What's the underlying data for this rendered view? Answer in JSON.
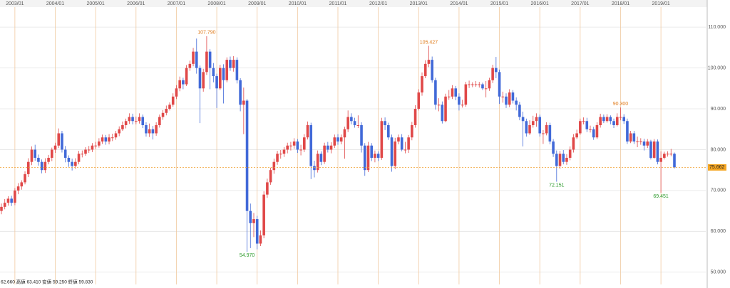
{
  "chart_data": {
    "type": "candlestick",
    "categories": [
      null,
      null,
      null,
      null,
      "2003/01",
      null,
      null,
      null,
      null,
      null,
      null,
      null,
      null,
      null,
      null,
      null,
      "2004/01",
      null,
      null,
      null,
      null,
      null,
      null,
      null,
      null,
      null,
      null,
      null,
      "2005/01",
      null,
      null,
      null,
      null,
      null,
      null,
      null,
      null,
      null,
      null,
      null,
      "2006/01",
      null,
      null,
      null,
      null,
      null,
      null,
      null,
      null,
      null,
      null,
      null,
      "2007/01",
      null,
      null,
      null,
      null,
      null,
      null,
      null,
      null,
      null,
      null,
      null,
      "2008/01",
      null,
      null,
      null,
      null,
      null,
      null,
      null,
      null,
      null,
      null,
      null,
      "2009/01",
      null,
      null,
      null,
      null,
      null,
      null,
      null,
      null,
      null,
      null,
      null,
      "2010/01",
      null,
      null,
      null,
      null,
      null,
      null,
      null,
      null,
      null,
      null,
      null,
      "2011/01",
      null,
      null,
      null,
      null,
      null,
      null,
      null,
      null,
      null,
      null,
      null,
      "2012/01",
      null,
      null,
      null,
      null,
      null,
      null,
      null,
      null,
      null,
      null,
      null,
      "2013/01",
      null,
      null,
      null,
      null,
      null,
      null,
      null,
      null,
      null,
      null,
      null,
      "2014/01",
      null,
      null,
      null,
      null,
      null,
      null,
      null,
      null,
      null,
      null,
      null,
      "2015/01",
      null,
      null,
      null,
      null,
      null,
      null,
      null,
      null,
      null,
      null,
      null,
      "2016/01",
      null,
      null,
      null,
      null,
      null,
      null,
      null,
      null,
      null,
      null,
      null,
      "2017/01",
      null,
      null,
      null,
      null,
      null,
      null,
      null,
      null,
      null,
      null,
      null,
      "2018/01",
      null,
      null,
      null,
      null,
      null,
      null,
      null,
      null,
      null,
      null,
      null,
      "2019/01",
      null,
      null,
      null,
      null
    ],
    "open": [
      65,
      66,
      67,
      68,
      67,
      70,
      71,
      72,
      74,
      77,
      80,
      78,
      77,
      75,
      77,
      78,
      80,
      81,
      84,
      80,
      78,
      77,
      76,
      77,
      79,
      79,
      80,
      80,
      81,
      81,
      82,
      83,
      82,
      83,
      83,
      84,
      85,
      86,
      87,
      88,
      87,
      87,
      88,
      86,
      84,
      85,
      84,
      86,
      88,
      89,
      90,
      91,
      93,
      95,
      97,
      96,
      100,
      101,
      104,
      100,
      95,
      99,
      104,
      100,
      98,
      95,
      100,
      97,
      102,
      100,
      102,
      97,
      91,
      92,
      65,
      62,
      63,
      57,
      59,
      69,
      72,
      75,
      77,
      79,
      79,
      80,
      81,
      81,
      82,
      80,
      80,
      83,
      86,
      76,
      75,
      79,
      77,
      81,
      80,
      81,
      83,
      82,
      83,
      85,
      88,
      87,
      86,
      86,
      81,
      75,
      81,
      78,
      79,
      78,
      87,
      86,
      83,
      76,
      82,
      83,
      80,
      80,
      83,
      86,
      90,
      94,
      98,
      101,
      102,
      97,
      91,
      91,
      87,
      93,
      93,
      95,
      93,
      91,
      91,
      96,
      96,
      96,
      96,
      96,
      95,
      95,
      97,
      100,
      99,
      93,
      93,
      91,
      94,
      92,
      91,
      88,
      87,
      84,
      86,
      87,
      88,
      84,
      84,
      86,
      82,
      79,
      76,
      79,
      77,
      78,
      80,
      83,
      84,
      87,
      87,
      85,
      85,
      83,
      86,
      88,
      87,
      88,
      87,
      86,
      88,
      88,
      87,
      82,
      84,
      82,
      82,
      82,
      81,
      82,
      78,
      82,
      77,
      78,
      79,
      79,
      79
    ],
    "high": [
      66.8,
      67.9,
      68.6,
      68.7,
      70.6,
      71.8,
      72.5,
      74.7,
      77.9,
      80.8,
      81.2,
      78.8,
      77.6,
      77.9,
      78.7,
      80.5,
      81.7,
      85.2,
      84.6,
      80.9,
      78.6,
      77.8,
      77.9,
      79.7,
      79.8,
      80.6,
      80.9,
      81.6,
      81.9,
      82.8,
      83.7,
      83.6,
      83.8,
      83.9,
      84.6,
      85.7,
      86.9,
      87.6,
      88.9,
      88.8,
      88.1,
      88.9,
      88.6,
      86.7,
      86.4,
      85.8,
      86.7,
      88.6,
      89.7,
      90.8,
      91.6,
      93.8,
      95.8,
      97.9,
      97.6,
      100.7,
      101.8,
      104.9,
      107.2,
      100.6,
      99.8,
      107.79,
      104.6,
      101.2,
      98.6,
      100.8,
      100.9,
      102.6,
      102.8,
      102.9,
      102.6,
      97.5,
      95.2,
      92.4,
      66.8,
      64.5,
      63.8,
      60.2,
      69.8,
      72.9,
      75.6,
      77.8,
      79.7,
      79.9,
      80.6,
      81.7,
      81.9,
      82.8,
      82.6,
      81.2,
      83.8,
      86.9,
      86.6,
      77.3,
      79.8,
      79.6,
      81.7,
      81.9,
      81.8,
      83.7,
      83.8,
      83.7,
      85.6,
      89.6,
      88.9,
      87.8,
      88.4,
      86.7,
      81.6,
      81.9,
      81.6,
      79.8,
      79.6,
      87.8,
      87.9,
      86.6,
      83.7,
      82.9,
      83.7,
      83.8,
      81.9,
      83.6,
      86.8,
      90.9,
      94.8,
      98.9,
      101.9,
      105.427,
      102.8,
      97.6,
      92.6,
      91.8,
      93.7,
      94.6,
      95.8,
      95.6,
      93.8,
      92.2,
      96.6,
      96.9,
      96.5,
      96.8,
      96.6,
      96.4,
      96.8,
      97.6,
      100.8,
      102.7,
      99.6,
      94.2,
      93.8,
      94.8,
      94.6,
      92.8,
      91.7,
      89.3,
      87.6,
      87.2,
      88.3,
      88.9,
      88.6,
      84.8,
      86.7,
      86.6,
      82.6,
      79.8,
      79.7,
      79.9,
      78.9,
      80.8,
      83.8,
      84.9,
      87.6,
      87.9,
      87.8,
      85.9,
      85.6,
      86.7,
      88.8,
      88.6,
      88.7,
      88.4,
      87.6,
      88.9,
      90.3,
      88.7,
      87.6,
      84.6,
      84.6,
      83.2,
      82.8,
      82.7,
      82.6,
      82.4,
      82.6,
      82.5,
      79.6,
      79.5,
      79.6,
      80.2,
      79.3
    ],
    "low": [
      64.2,
      65.4,
      66.3,
      66.2,
      66.4,
      69.1,
      70.2,
      71.5,
      73.3,
      76.2,
      77.3,
      76.1,
      74.2,
      74.3,
      76.4,
      77.2,
      79.2,
      80.4,
      79.3,
      76.9,
      75.8,
      74.9,
      75.3,
      76.4,
      78.1,
      78.5,
      79.2,
      79.4,
      80.2,
      80.5,
      81.4,
      81.2,
      81.3,
      82.1,
      82.4,
      83.3,
      84.6,
      85.2,
      86.3,
      86.2,
      86.2,
      86.4,
      85.3,
      83.2,
      83.1,
      82.5,
      83.4,
      85.4,
      87.3,
      88.4,
      89.6,
      90.5,
      92.4,
      94.3,
      94.8,
      95.6,
      99.3,
      100.4,
      98.6,
      86.5,
      94.2,
      98.3,
      94.8,
      96.5,
      90.2,
      94.6,
      91.3,
      96.5,
      99.3,
      99.1,
      96.2,
      89.4,
      83.8,
      54.97,
      55.9,
      58.6,
      55.6,
      56.4,
      58.3,
      68.2,
      71.4,
      74.1,
      76.3,
      77.8,
      78.2,
      79.1,
      79.8,
      80.2,
      79.2,
      78.6,
      79.4,
      82.5,
      72.8,
      73.2,
      74.4,
      76.2,
      76.5,
      79.3,
      79.1,
      80.4,
      81.2,
      81.3,
      77.8,
      84.3,
      86.2,
      85.4,
      85.3,
      79.3,
      73.6,
      74.5,
      77.2,
      76.9,
      77.2,
      77.5,
      84.8,
      82.4,
      74.6,
      75.2,
      81.3,
      79.6,
      79.1,
      79.2,
      82.3,
      85.4,
      89.6,
      93.2,
      97.5,
      100.2,
      96.4,
      89.8,
      89.4,
      86.4,
      86.7,
      92.2,
      92.4,
      92.1,
      89.6,
      90.3,
      90.5,
      95.1,
      95.3,
      95.4,
      95.2,
      94.6,
      92.8,
      94.4,
      96.3,
      97.5,
      91.2,
      91.5,
      90.2,
      90.4,
      91.3,
      89.6,
      87.2,
      80.8,
      83.2,
      83.6,
      85.4,
      85.6,
      83.2,
      81.4,
      83.5,
      81.3,
      78.2,
      72.151,
      75.3,
      76.4,
      76.3,
      77.4,
      79.3,
      82.6,
      83.6,
      86.2,
      84.3,
      84.2,
      82.4,
      82.6,
      85.4,
      86.5,
      86.6,
      86.2,
      85.3,
      85.7,
      87.2,
      86.3,
      81.4,
      81.6,
      81.4,
      80.6,
      81.2,
      79.8,
      80.4,
      77.6,
      77.8,
      76.4,
      69.451,
      77.6,
      78.3,
      78.4,
      75.4
    ],
    "close": [
      66,
      67,
      68,
      67,
      70,
      71,
      72,
      74,
      77,
      80,
      78,
      77,
      75,
      77,
      78,
      80,
      81,
      84,
      80,
      78,
      77,
      76,
      77,
      79,
      79,
      80,
      80,
      81,
      81,
      82,
      83,
      82,
      83,
      83,
      84,
      85,
      86,
      87,
      88,
      87,
      87,
      88,
      86,
      84,
      85,
      84,
      86,
      88,
      89,
      90,
      91,
      93,
      95,
      97,
      96,
      100,
      101,
      104,
      100,
      95,
      99,
      104,
      100,
      98,
      95,
      100,
      97,
      102,
      100,
      102,
      97,
      91,
      92,
      65,
      62,
      63,
      57,
      59,
      69,
      72,
      75,
      77,
      79,
      79,
      80,
      81,
      81,
      82,
      80,
      80,
      83,
      86,
      76,
      75,
      79,
      77,
      81,
      80,
      81,
      83,
      82,
      83,
      85,
      88,
      87,
      86,
      86,
      81,
      75,
      81,
      78,
      79,
      78,
      87,
      86,
      83,
      76,
      82,
      83,
      80,
      80,
      83,
      86,
      90,
      94,
      98,
      101,
      102,
      97,
      91,
      91,
      87,
      93,
      93,
      95,
      93,
      91,
      91,
      96,
      96,
      96,
      96,
      96,
      95,
      95,
      97,
      100,
      99,
      93,
      93,
      91,
      94,
      92,
      91,
      88,
      87,
      84,
      86,
      87,
      88,
      84,
      84,
      86,
      82,
      79,
      76,
      79,
      77,
      78,
      80,
      83,
      84,
      87,
      87,
      85,
      85,
      83,
      86,
      88,
      87,
      88,
      87,
      86,
      88,
      88,
      87,
      82,
      84,
      82,
      82,
      82,
      81,
      82,
      78,
      82,
      77,
      78,
      79,
      79,
      79,
      75.662
    ],
    "up_color": "#e04848",
    "down_color": "#4169d8",
    "high_labels": [
      {
        "value": 107.79,
        "label": "107.790"
      },
      {
        "value": 105.427,
        "label": "105.427"
      },
      {
        "value": 90.3,
        "label": "90.300"
      }
    ],
    "low_labels": [
      {
        "value": 54.97,
        "label": "54.970"
      },
      {
        "value": 72.151,
        "label": "72.151"
      },
      {
        "value": 69.451,
        "label": "69.451"
      }
    ],
    "last_price": {
      "value": 75.662,
      "label": "75.662"
    },
    "status_bar": "62.660 高値 63.410 安値 59.250 終値 59.830",
    "ylim": [
      47,
      114.9
    ],
    "yticks": [
      {
        "value": 50,
        "label": "50.000"
      },
      {
        "value": 60,
        "label": "60.000"
      },
      {
        "value": 70,
        "label": "70.000"
      },
      {
        "value": 80,
        "label": "80.000"
      },
      {
        "value": 90,
        "label": "90.000"
      },
      {
        "value": 100,
        "label": "100.000"
      },
      {
        "value": 110,
        "label": "110.000"
      }
    ],
    "grid": true
  }
}
